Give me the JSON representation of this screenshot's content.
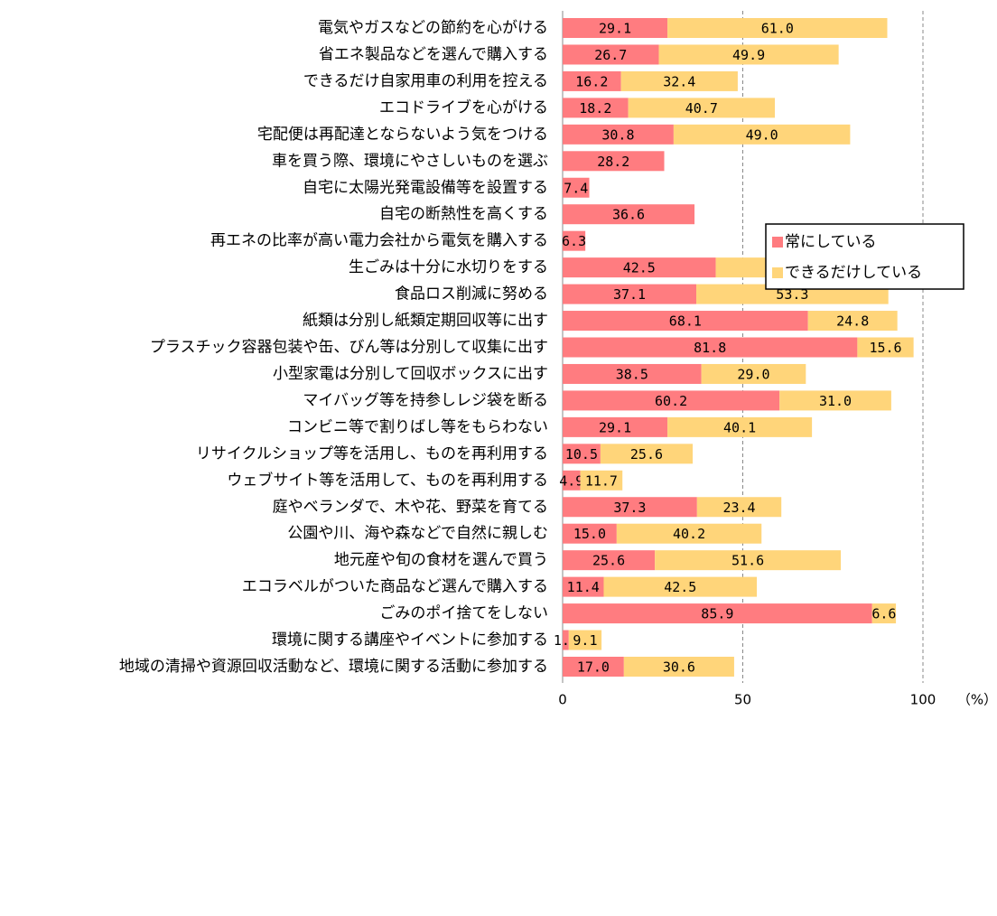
{
  "chart_data": {
    "type": "stacked-barh",
    "categories": [
      "電気やガスなどの節約を心がける",
      "省エネ製品などを選んで購入する",
      "できるだけ自家用車の利用を控える",
      "エコドライブを心がける",
      "宅配便は再配達とならないよう気をつける",
      "車を買う際、環境にやさしいものを選ぶ",
      "自宅に太陽光発電設備等を設置する",
      "自宅の断熱性を高くする",
      "再エネの比率が高い電力会社から電気を購入する",
      "生ごみは十分に水切りをする",
      "食品ロス削減に努める",
      "紙類は分別し紙類定期回収等に出す",
      "プラスチック容器包装や缶、びん等は分別して収集に出す",
      "小型家電は分別して回収ボックスに出す",
      "マイバッグ等を持参しレジ袋を断る",
      "コンビニ等で割りばし等をもらわない",
      "リサイクルショップ等を活用し、ものを再利用する",
      "ウェブサイト等を活用して、ものを再利用する",
      "庭やベランダで、木や花、野菜を育てる",
      "公園や川、海や森などで自然に親しむ",
      "地元産や旬の食材を選んで買う",
      "エコラベルがついた商品など選んで購入する",
      "ごみのポイ捨てをしない",
      "環境に関する講座やイベントに参加する",
      "地域の清掃や資源回収活動など、環境に関する活動に参加する"
    ],
    "series": [
      {
        "name": "常にしている",
        "color": "#ff7c80",
        "values": [
          29.1,
          26.7,
          16.2,
          18.2,
          30.8,
          28.2,
          7.4,
          36.6,
          6.3,
          42.5,
          37.1,
          68.1,
          81.8,
          38.5,
          60.2,
          29.1,
          10.5,
          4.9,
          37.3,
          15.0,
          25.6,
          11.4,
          85.9,
          1.7,
          17.0
        ],
        "value_labels": [
          "29.1",
          "26.7",
          "16.2",
          "18.2",
          "30.8",
          "28.2",
          "7.4",
          "36.6",
          "6.3",
          "42.5",
          "37.1",
          "68.1",
          "81.8",
          "38.5",
          "60.2",
          "29.1",
          "10.5",
          "4.9",
          "37.3",
          "15.0",
          "25.6",
          "11.4",
          "85.9",
          "1.7",
          "17.0"
        ]
      },
      {
        "name": "できるだけしている",
        "color": "#ffd57a",
        "values": [
          61.0,
          49.9,
          32.4,
          40.7,
          49.0,
          null,
          null,
          null,
          null,
          48.2,
          53.3,
          24.8,
          15.6,
          29.0,
          31.0,
          40.1,
          25.6,
          11.7,
          23.4,
          40.2,
          51.6,
          42.5,
          6.6,
          9.1,
          30.6
        ],
        "value_labels": [
          "61.0",
          "49.9",
          "32.4",
          "40.7",
          "49.0",
          null,
          null,
          null,
          null,
          "48.2",
          "53.3",
          "24.8",
          "15.6",
          "29.0",
          "31.0",
          "40.1",
          "25.6",
          "11.7",
          "23.4",
          "40.2",
          "51.6",
          "42.5",
          "6.6",
          "9.1",
          "30.6"
        ]
      }
    ],
    "xlim": [
      0,
      100
    ],
    "xticks": [
      0,
      50,
      100
    ],
    "xlabel": "（%）",
    "grid": true,
    "legend": "right"
  }
}
